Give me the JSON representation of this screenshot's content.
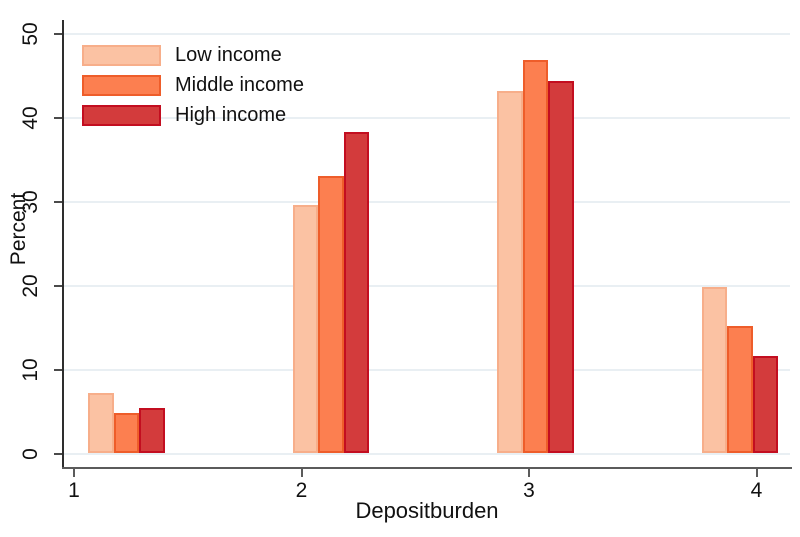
{
  "chart_data": {
    "type": "bar",
    "title": "",
    "xlabel": "Depositburden",
    "ylabel": "Percent",
    "categories": [
      "1",
      "2",
      "3",
      "4"
    ],
    "series": [
      {
        "name": "Low income",
        "values": [
          7.2,
          29.6,
          43.2,
          19.8
        ],
        "fill": "#fbc2a3",
        "border": "#f7ae8a"
      },
      {
        "name": "Middle income",
        "values": [
          4.8,
          33.0,
          46.8,
          15.2
        ],
        "fill": "#fc7f50",
        "border": "#ee5d2a"
      },
      {
        "name": "High income",
        "values": [
          5.4,
          38.3,
          44.4,
          11.6
        ],
        "fill": "#d33b3c",
        "border": "#c30e20"
      }
    ],
    "ylim": [
      0,
      50
    ],
    "yticks": [
      0,
      10,
      20,
      30,
      40,
      50
    ],
    "grid": true,
    "grid_color": "#e9eff3",
    "background_color": "#ffffff",
    "legend_position": "top-left-inside"
  }
}
